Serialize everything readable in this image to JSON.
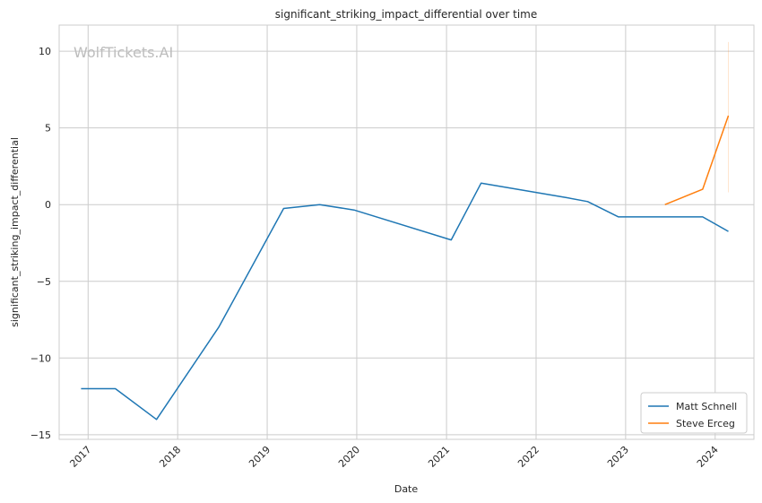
{
  "chart_data": {
    "type": "line",
    "title": "significant_striking_impact_differential over time",
    "xlabel": "Date",
    "ylabel": "significant_striking_impact_differential",
    "watermark": "WolfTickets.AI",
    "xlim": [
      "2016-09-05",
      "2024-06-07"
    ],
    "ylim": [
      -15.3,
      11.7
    ],
    "x_ticks": [
      "2017",
      "2018",
      "2019",
      "2020",
      "2021",
      "2022",
      "2023",
      "2024"
    ],
    "y_ticks": [
      10,
      5,
      0,
      -5,
      -10,
      -15
    ],
    "y_tick_labels": [
      "10",
      "5",
      "0",
      "−5",
      "−10",
      "−15"
    ],
    "grid": true,
    "legend_position": "lower-right",
    "series": [
      {
        "name": "Matt Schnell",
        "color": "#1f77b4",
        "x": [
          "2016-12-03",
          "2017-04-22",
          "2017-10-07",
          "2018-06-17",
          "2019-03-09",
          "2019-08-03",
          "2019-12-21",
          "2021-01-20",
          "2021-05-22",
          "2022-05-07",
          "2022-07-30",
          "2022-12-03",
          "2023-11-11",
          "2024-02-24"
        ],
        "y": [
          -12.0,
          -12.0,
          -14.0,
          -8.0,
          -0.25,
          0.0,
          -0.35,
          -2.3,
          1.4,
          0.45,
          0.2,
          -0.8,
          -0.8,
          -1.75
        ]
      },
      {
        "name": "Steve Erceg",
        "color": "#ff7f0e",
        "x": [
          "2023-06-10",
          "2023-11-11",
          "2024-02-24"
        ],
        "y": [
          0.0,
          1.0,
          5.8
        ],
        "band": {
          "x": "2024-02-24",
          "low": 0.8,
          "high": 10.6
        }
      }
    ]
  }
}
